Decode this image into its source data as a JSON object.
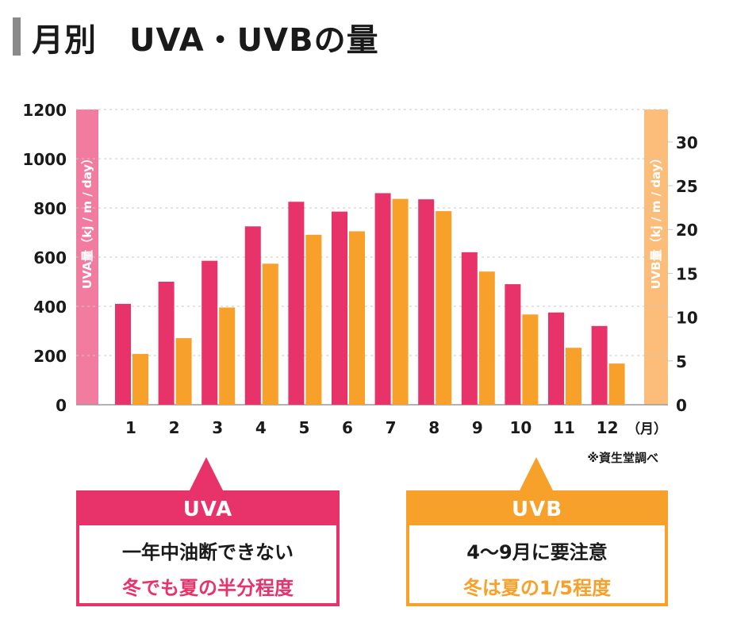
{
  "page_title": "月別　UVA・UVBの量",
  "colors": {
    "uva": "#e8336a",
    "uvb": "#f7a02a",
    "uva_band": "#f27ca0",
    "uvb_band": "#fbbd79",
    "grid": "#c8c8c8"
  },
  "chart_data": {
    "type": "bar",
    "title": "月別　UVA・UVBの量",
    "categories": [
      "1",
      "2",
      "3",
      "4",
      "5",
      "6",
      "7",
      "8",
      "9",
      "10",
      "11",
      "12"
    ],
    "x_unit": "（月）",
    "series": [
      {
        "name": "UVA",
        "axis": "left",
        "values": [
          410,
          500,
          585,
          725,
          825,
          785,
          860,
          835,
          620,
          490,
          375,
          320
        ]
      },
      {
        "name": "UVB",
        "axis": "right",
        "values": [
          5.8,
          7.6,
          11.1,
          16.1,
          19.4,
          19.8,
          23.5,
          22.1,
          15.2,
          10.3,
          6.5,
          4.7
        ]
      }
    ],
    "left_axis": {
      "label": "UVA量（kj / m / day）",
      "ylim": [
        0,
        1200
      ],
      "ticks": [
        "0",
        "200",
        "400",
        "600",
        "800",
        "1000",
        "1200"
      ]
    },
    "right_axis": {
      "label": "UVB量（kj / m / day）",
      "ylim": [
        0,
        33.7
      ],
      "ticks": [
        "0",
        "5",
        "10",
        "15",
        "20",
        "25",
        "30"
      ]
    },
    "source_note": "※資生堂調べ",
    "grid": true
  },
  "callouts": {
    "uva": {
      "title": "UVA",
      "line1": "一年中油断できない",
      "line2": "冬でも夏の半分程度"
    },
    "uvb": {
      "title": "UVB",
      "line1": "4〜9月に要注意",
      "line2": "冬は夏の1/5程度"
    }
  }
}
